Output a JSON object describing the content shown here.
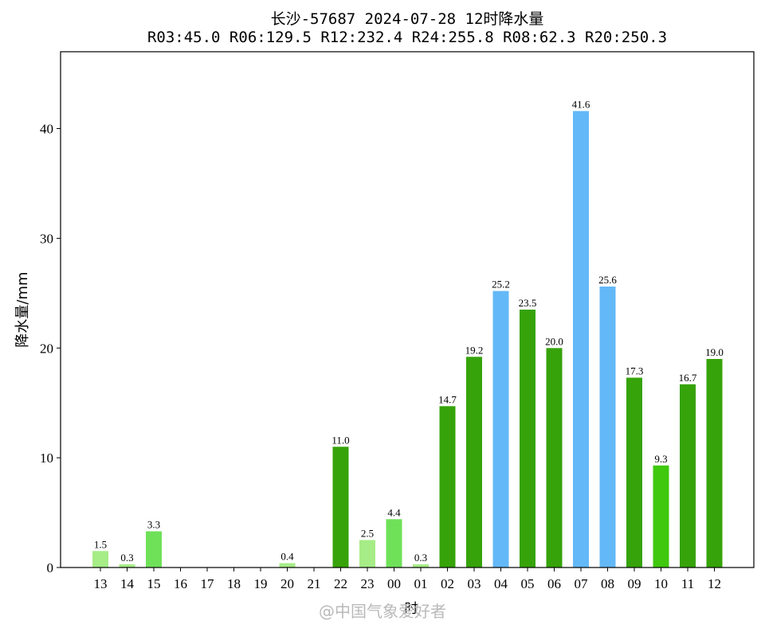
{
  "title_line1": "长沙-57687  2024-07-28 12时降水量",
  "title_line2": "R03:45.0  R06:129.5  R12:232.4  R24:255.8  R08:62.3  R20:250.3",
  "watermark": "@中国气象爱好者",
  "chart_data": {
    "type": "bar",
    "title": "长沙-57687  2024-07-28 12时降水量",
    "subtitle": "R03:45.0  R06:129.5  R12:232.4  R24:255.8  R08:62.3  R20:250.3",
    "xlabel": "时",
    "ylabel": "降水量/mm",
    "ylim": [
      0,
      47
    ],
    "yticks": [
      0,
      10,
      20,
      30,
      40
    ],
    "grid": false,
    "categories": [
      "13",
      "14",
      "15",
      "16",
      "17",
      "18",
      "19",
      "20",
      "21",
      "22",
      "23",
      "00",
      "01",
      "02",
      "03",
      "04",
      "05",
      "06",
      "07",
      "08",
      "09",
      "10",
      "11",
      "12"
    ],
    "values": [
      1.5,
      0.3,
      3.3,
      0,
      0,
      0,
      0,
      0.4,
      0,
      11.0,
      2.5,
      4.4,
      0.3,
      14.7,
      19.2,
      25.2,
      23.5,
      20.0,
      41.6,
      25.6,
      17.3,
      9.3,
      16.7,
      19.0
    ],
    "value_labels": [
      "1.5",
      "0.3",
      "3.3",
      "",
      "",
      "",
      "",
      "0.4",
      "",
      "11.0",
      "2.5",
      "4.4",
      "0.3",
      "14.7",
      "19.2",
      "25.2",
      "23.5",
      "20.0",
      "41.6",
      "25.6",
      "17.3",
      "9.3",
      "16.7",
      "19.0"
    ],
    "colors": {
      "light_green": "#a6ec87",
      "green": "#6fe159",
      "bright_green": "#3fc80e",
      "dark_green": "#36a30a",
      "blue": "#63b8f7"
    },
    "bar_colors": [
      "#a6ec87",
      "#a6ec87",
      "#6fe159",
      "#a6ec87",
      "#a6ec87",
      "#a6ec87",
      "#a6ec87",
      "#a6ec87",
      "#a6ec87",
      "#36a30a",
      "#a6ec87",
      "#6fe159",
      "#a6ec87",
      "#36a30a",
      "#36a30a",
      "#63b8f7",
      "#36a30a",
      "#36a30a",
      "#63b8f7",
      "#63b8f7",
      "#36a30a",
      "#3fc80e",
      "#36a30a",
      "#36a30a"
    ]
  }
}
